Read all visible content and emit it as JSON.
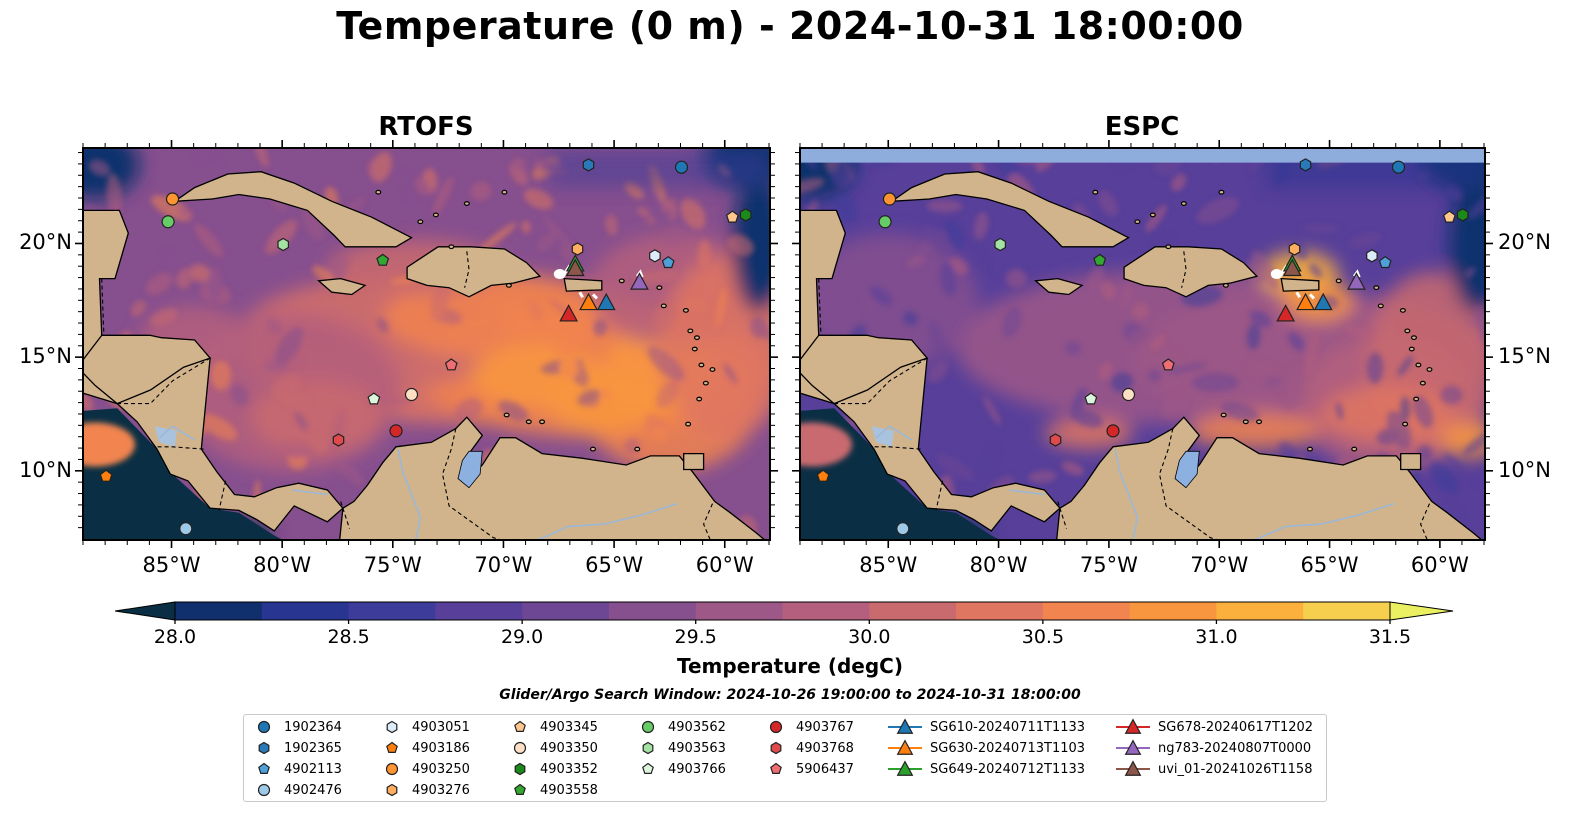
{
  "title": "Temperature (0 m) - 2024-10-31 18:00:00",
  "panels": [
    {
      "title": "RTOFS",
      "model": "RTOFS"
    },
    {
      "title": "ESPC",
      "model": "ESPC"
    }
  ],
  "axes": {
    "lon_labels": [
      "85°W",
      "80°W",
      "75°W",
      "70°W",
      "65°W",
      "60°W"
    ],
    "lon_values": [
      -85,
      -80,
      -75,
      -70,
      -65,
      -60
    ],
    "lat_labels": [
      "20°N",
      "15°N",
      "10°N"
    ],
    "lat_values": [
      20,
      15,
      10
    ],
    "lon_range": [
      -89,
      -58
    ],
    "lat_range": [
      7,
      24.2
    ]
  },
  "colorbar": {
    "label": "Temperature (degC)",
    "ticks": [
      "28.0",
      "28.5",
      "29.0",
      "29.5",
      "30.0",
      "30.5",
      "31.0",
      "31.5"
    ],
    "range": [
      28.0,
      31.5
    ],
    "colors": [
      "#0a2f44",
      "#10306d",
      "#283691",
      "#3d3c9a",
      "#573f9a",
      "#6d4694",
      "#864f8e",
      "#9e5887",
      "#b45f7d",
      "#c96a6f",
      "#df7661",
      "#f1844f",
      "#f89640",
      "#fbb03d",
      "#f7cf4f",
      "#eaf062"
    ]
  },
  "search_window": "Glider/Argo Search Window: 2024-10-26 19:00:00 to 2024-10-31 18:00:00",
  "legend": [
    {
      "label": "1902364",
      "marker": "circle",
      "color": "#1f77b4"
    },
    {
      "label": "1902365",
      "marker": "hexagon",
      "color": "#2a7ab9"
    },
    {
      "label": "4902113",
      "marker": "pentagon",
      "color": "#4f9fd8"
    },
    {
      "label": "4902476",
      "marker": "circle",
      "color": "#9ecae9"
    },
    {
      "label": "4903051",
      "marker": "hexagon",
      "color": "#dcecf8"
    },
    {
      "label": "4903186",
      "marker": "pentagon",
      "color": "#ff7f0e"
    },
    {
      "label": "4903250",
      "marker": "circle",
      "color": "#ff9430"
    },
    {
      "label": "4903276",
      "marker": "hexagon",
      "color": "#ffad5e"
    },
    {
      "label": "4903345",
      "marker": "pentagon",
      "color": "#ffc68e"
    },
    {
      "label": "4903350",
      "marker": "circle",
      "color": "#fde0c4"
    },
    {
      "label": "4903352",
      "marker": "hexagon",
      "color": "#1b8a1b"
    },
    {
      "label": "4903558",
      "marker": "pentagon",
      "color": "#32a832"
    },
    {
      "label": "4903562",
      "marker": "circle",
      "color": "#66cc66"
    },
    {
      "label": "4903563",
      "marker": "hexagon",
      "color": "#a3e2a3"
    },
    {
      "label": "4903766",
      "marker": "pentagon",
      "color": "#dcf5dc"
    },
    {
      "label": "4903767",
      "marker": "circle",
      "color": "#d62728"
    },
    {
      "label": "4903768",
      "marker": "hexagon",
      "color": "#e04a4a"
    },
    {
      "label": "5906437",
      "marker": "pentagon",
      "color": "#ef6e73"
    },
    {
      "label": "SG610-20240711T1133",
      "marker": "triangle",
      "color": "#1f77b4"
    },
    {
      "label": "SG630-20240713T1103",
      "marker": "triangle",
      "color": "#ff7f0e"
    },
    {
      "label": "SG649-20240712T1133",
      "marker": "triangle",
      "color": "#2ca02c"
    },
    {
      "label": "SG678-20240617T1202",
      "marker": "triangle",
      "color": "#d62728"
    },
    {
      "label": "ng783-20240807T0000",
      "marker": "triangle",
      "color": "#9467bd"
    },
    {
      "label": "uvi_01-20241026T1158",
      "marker": "triangle",
      "color": "#8c564b"
    }
  ],
  "markers": [
    {
      "id": "1902364",
      "lon": -62.0,
      "lat": 23.4
    },
    {
      "id": "1902365",
      "lon": -66.2,
      "lat": 23.5
    },
    {
      "id": "4902113",
      "lon": -62.6,
      "lat": 19.2
    },
    {
      "id": "4902476",
      "lon": -84.4,
      "lat": 7.5
    },
    {
      "id": "4903051",
      "lon": -63.2,
      "lat": 19.5
    },
    {
      "id": "4903186",
      "lon": -88.0,
      "lat": 9.8
    },
    {
      "id": "4903250",
      "lon": -85.0,
      "lat": 22.0
    },
    {
      "id": "4903276",
      "lon": -66.7,
      "lat": 19.8
    },
    {
      "id": "4903345",
      "lon": -59.7,
      "lat": 21.2
    },
    {
      "id": "4903350",
      "lon": -74.2,
      "lat": 13.4
    },
    {
      "id": "4903352",
      "lon": -59.1,
      "lat": 21.3
    },
    {
      "id": "4903558",
      "lon": -75.5,
      "lat": 19.3
    },
    {
      "id": "4903562",
      "lon": -85.2,
      "lat": 21.0
    },
    {
      "id": "4903563",
      "lon": -80.0,
      "lat": 20.0
    },
    {
      "id": "4903766",
      "lon": -75.9,
      "lat": 13.2
    },
    {
      "id": "4903767",
      "lon": -74.9,
      "lat": 11.8
    },
    {
      "id": "4903768",
      "lon": -77.5,
      "lat": 11.4
    },
    {
      "id": "5906437",
      "lon": -72.4,
      "lat": 14.7
    },
    {
      "id": "SG610-20240711T1133",
      "lon": -65.4,
      "lat": 17.4
    },
    {
      "id": "SG630-20240713T1103",
      "lon": -66.2,
      "lat": 17.4
    },
    {
      "id": "SG649-20240712T1133",
      "lon": -66.8,
      "lat": 19.1
    },
    {
      "id": "SG678-20240617T1202",
      "lon": -67.1,
      "lat": 16.9
    },
    {
      "id": "ng783-20240807T0000",
      "lon": -63.9,
      "lat": 18.3
    },
    {
      "id": "uvi_01-20241026T1158",
      "lon": -66.8,
      "lat": 18.9
    }
  ]
}
